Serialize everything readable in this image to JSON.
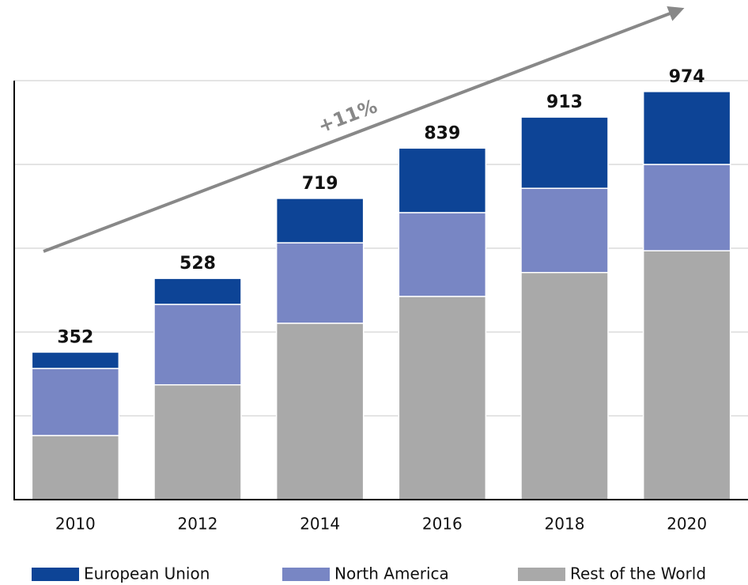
{
  "chart_data": {
    "type": "stacked_bar",
    "categories": [
      "2010",
      "2012",
      "2014",
      "2016",
      "2018",
      "2020"
    ],
    "series": [
      {
        "name": "Rest of the World",
        "color": "#a9a9a9",
        "values": [
          153,
          274,
          421,
          485,
          542,
          594
        ]
      },
      {
        "name": "North America",
        "color": "#7886c4",
        "values": [
          160,
          192,
          192,
          200,
          201,
          206
        ]
      },
      {
        "name": "European Union",
        "color": "#0d4496",
        "values": [
          39,
          62,
          106,
          154,
          170,
          174
        ]
      }
    ],
    "totals": [
      352,
      528,
      719,
      839,
      913,
      974
    ],
    "annotation": "+11%",
    "legend_order": [
      "European Union",
      "North America",
      "Rest of the World"
    ],
    "ylim": [
      0,
      1000
    ],
    "yticks": [
      200,
      400,
      600,
      800,
      1000
    ],
    "grid": true
  }
}
